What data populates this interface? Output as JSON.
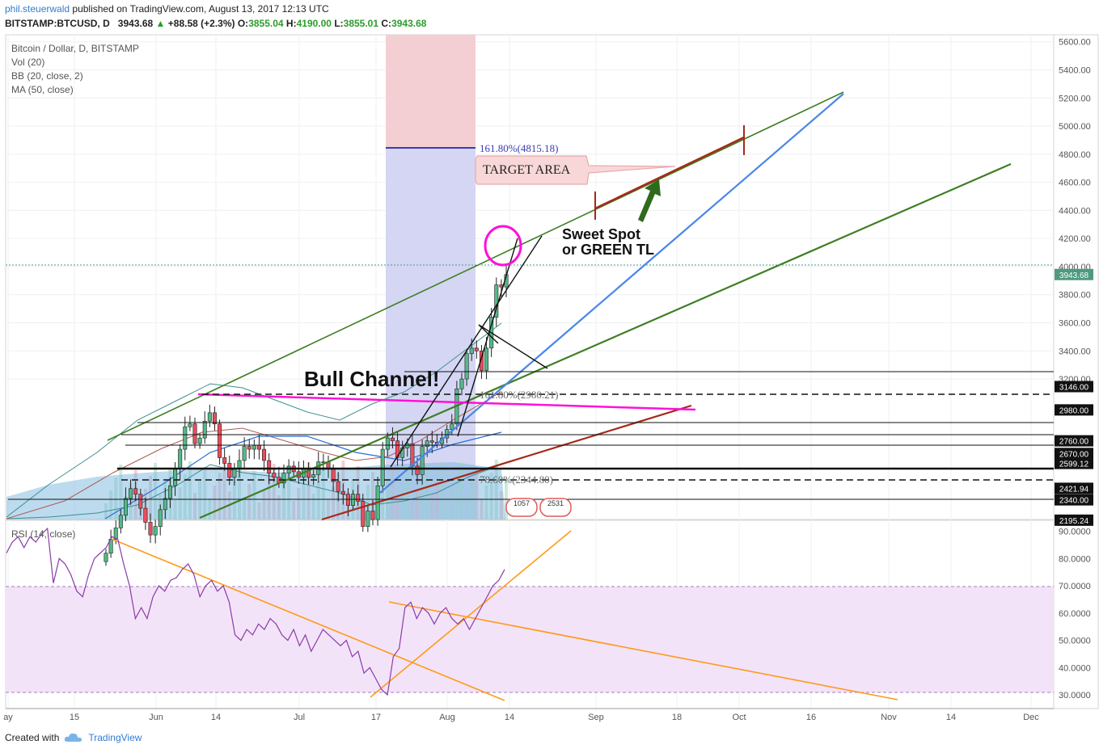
{
  "header": {
    "author": "phil.steuerwald",
    "published_text": "published on TradingView.com, August 13, 2017 12:13 UTC",
    "symbol": "BITSTAMP:BTCUSD, D",
    "last": "3943.68",
    "change": "+88.58 (+2.3%)",
    "o_label": "O:",
    "o": "3855.04",
    "h_label": "H:",
    "h": "4190.00",
    "l_label": "L:",
    "l": "3855.01",
    "c_label": "C:",
    "c": "3943.68"
  },
  "legend": {
    "title": "Bitcoin / Dollar, D, BITSTAMP",
    "vol": "Vol (20)",
    "bb": "BB (20, close, 2)",
    "ma": "MA (50, close)",
    "rsi": "RSI (14, close)"
  },
  "annotations": {
    "fib_top": "161.80%(4815.18)",
    "fib_mid": "161.80%(2980.21)",
    "fib_low": "78.60%(2344.80)",
    "target": "TARGET AREA",
    "sweet1": "Sweet Spot",
    "sweet2": "or GREEN TL",
    "bull": "Bull Channel!",
    "badge1": "1057",
    "badge2": "2531"
  },
  "footer": {
    "created": "Created with",
    "brand": "TradingView"
  },
  "colors": {
    "up": "#53b987",
    "down": "#eb4d5c",
    "green_tl": "#3e7f23",
    "blue_tl": "#4a86e8",
    "red_tl": "#a52a1a",
    "magenta": "#ff10d8",
    "orange": "#ff9a1a",
    "rsi": "#8a3ba8"
  },
  "chart_data": [
    {
      "type": "candlestick",
      "title": "Bitcoin / Dollar, D, BITSTAMP",
      "y_axis_labels": [
        "5600.00",
        "5400.00",
        "5200.00",
        "5000.00",
        "4800.00",
        "4600.00",
        "4400.00",
        "4200.00",
        "4000.00",
        "3800.00",
        "3600.00",
        "3400.00",
        "3200.00"
      ],
      "price_tags": [
        "3943.68",
        "3146.00",
        "2980.00",
        "2760.00",
        "2670.00",
        "2599.12",
        "2421.94",
        "2340.00",
        "2195.24"
      ],
      "x_axis_labels": [
        "ay",
        "15",
        "Jun",
        "14",
        "Jul",
        "17",
        "Aug",
        "14",
        "Sep",
        "18",
        "Oct",
        "16",
        "Nov",
        "14",
        "Dec"
      ],
      "ylim": [
        2200,
        5650
      ],
      "closes": [
        1960,
        2060,
        2140,
        2230,
        2350,
        2420,
        2380,
        2280,
        2180,
        2090,
        2150,
        2270,
        2350,
        2440,
        2560,
        2700,
        2860,
        2880,
        2740,
        2780,
        2900,
        2960,
        2880,
        2640,
        2600,
        2500,
        2560,
        2620,
        2720,
        2700,
        2730,
        2700,
        2620,
        2530,
        2500,
        2460,
        2530,
        2580,
        2540,
        2500,
        2560,
        2500,
        2520,
        2610,
        2610,
        2560,
        2470,
        2400,
        2380,
        2300,
        2380,
        2330,
        2150,
        2260,
        2200,
        2440,
        2700,
        2780,
        2760,
        2640,
        2710,
        2740,
        2580,
        2520,
        2720,
        2760,
        2750,
        2740,
        2780,
        2840,
        2880,
        3130,
        3200,
        3380,
        3420,
        3400,
        3260,
        3420,
        3640,
        3870,
        3855,
        3943.68
      ]
    },
    {
      "type": "line",
      "title": "RSI (14, close)",
      "y_axis_labels": [
        "90.0000",
        "80.0000",
        "70.0000",
        "60.0000",
        "50.0000",
        "40.0000",
        "30.0000"
      ],
      "ylim": [
        25,
        94
      ],
      "values": [
        82,
        86,
        88,
        84,
        88,
        86,
        89,
        91,
        71,
        80,
        78,
        74,
        68,
        66,
        74,
        80,
        82,
        84,
        88,
        87,
        78,
        70,
        58,
        62,
        58,
        66,
        70,
        68,
        72,
        73,
        76,
        78,
        74,
        66,
        70,
        72,
        68,
        70,
        64,
        52,
        50,
        54,
        52,
        56,
        54,
        58,
        56,
        52,
        50,
        54,
        48,
        52,
        46,
        50,
        54,
        52,
        50,
        48,
        50,
        44,
        46,
        38,
        40,
        36,
        32,
        30,
        44,
        47,
        62,
        64,
        58,
        62,
        60,
        56,
        60,
        62,
        58,
        56,
        58,
        54,
        58,
        62,
        66,
        70,
        72,
        76
      ]
    }
  ]
}
